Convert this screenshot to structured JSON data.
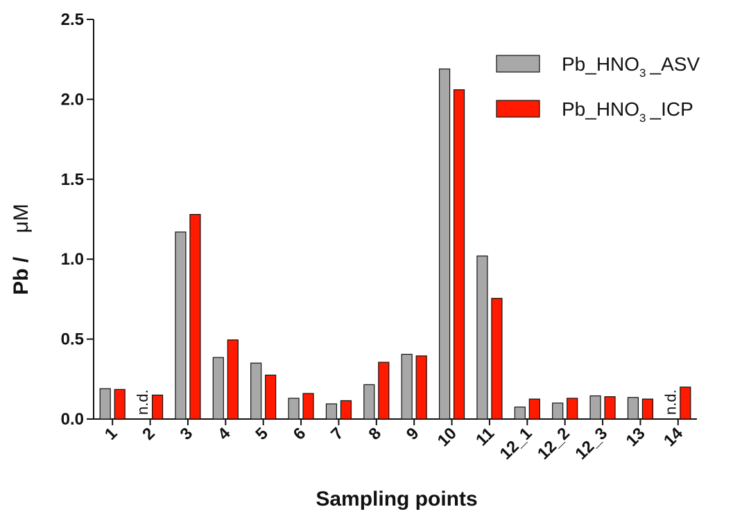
{
  "chart_data": {
    "type": "bar",
    "xlabel": "Sampling points",
    "ylabel_prefix": "Pb /",
    "ylabel_unit": "μM",
    "ylim": [
      0,
      2.5
    ],
    "yticks": [
      "0.0",
      "0.5",
      "1.0",
      "1.5",
      "2.0",
      "2.5"
    ],
    "categories": [
      "1",
      "2",
      "3",
      "4",
      "5",
      "6",
      "7",
      "8",
      "9",
      "10",
      "11",
      "12_1",
      "12_2",
      "12_3",
      "13",
      "14"
    ],
    "series": [
      {
        "name_main": "Pb_HNO",
        "name_sub": "3",
        "name_tail": "_ASV",
        "color": "#a8a8a8",
        "values": [
          0.19,
          null,
          1.17,
          0.385,
          0.35,
          0.13,
          0.095,
          0.215,
          0.405,
          2.19,
          1.02,
          0.075,
          0.1,
          0.145,
          0.135,
          null
        ]
      },
      {
        "name_main": "Pb_HNO",
        "name_sub": "3",
        "name_tail": "_ICP",
        "color": "#ff1a00",
        "values": [
          0.185,
          0.15,
          1.28,
          0.495,
          0.275,
          0.16,
          0.115,
          0.355,
          0.395,
          2.06,
          0.755,
          0.125,
          0.13,
          0.14,
          0.125,
          0.2
        ]
      }
    ],
    "not_detected_label": "n.d.",
    "grid": false,
    "legend_position": "top-right"
  }
}
